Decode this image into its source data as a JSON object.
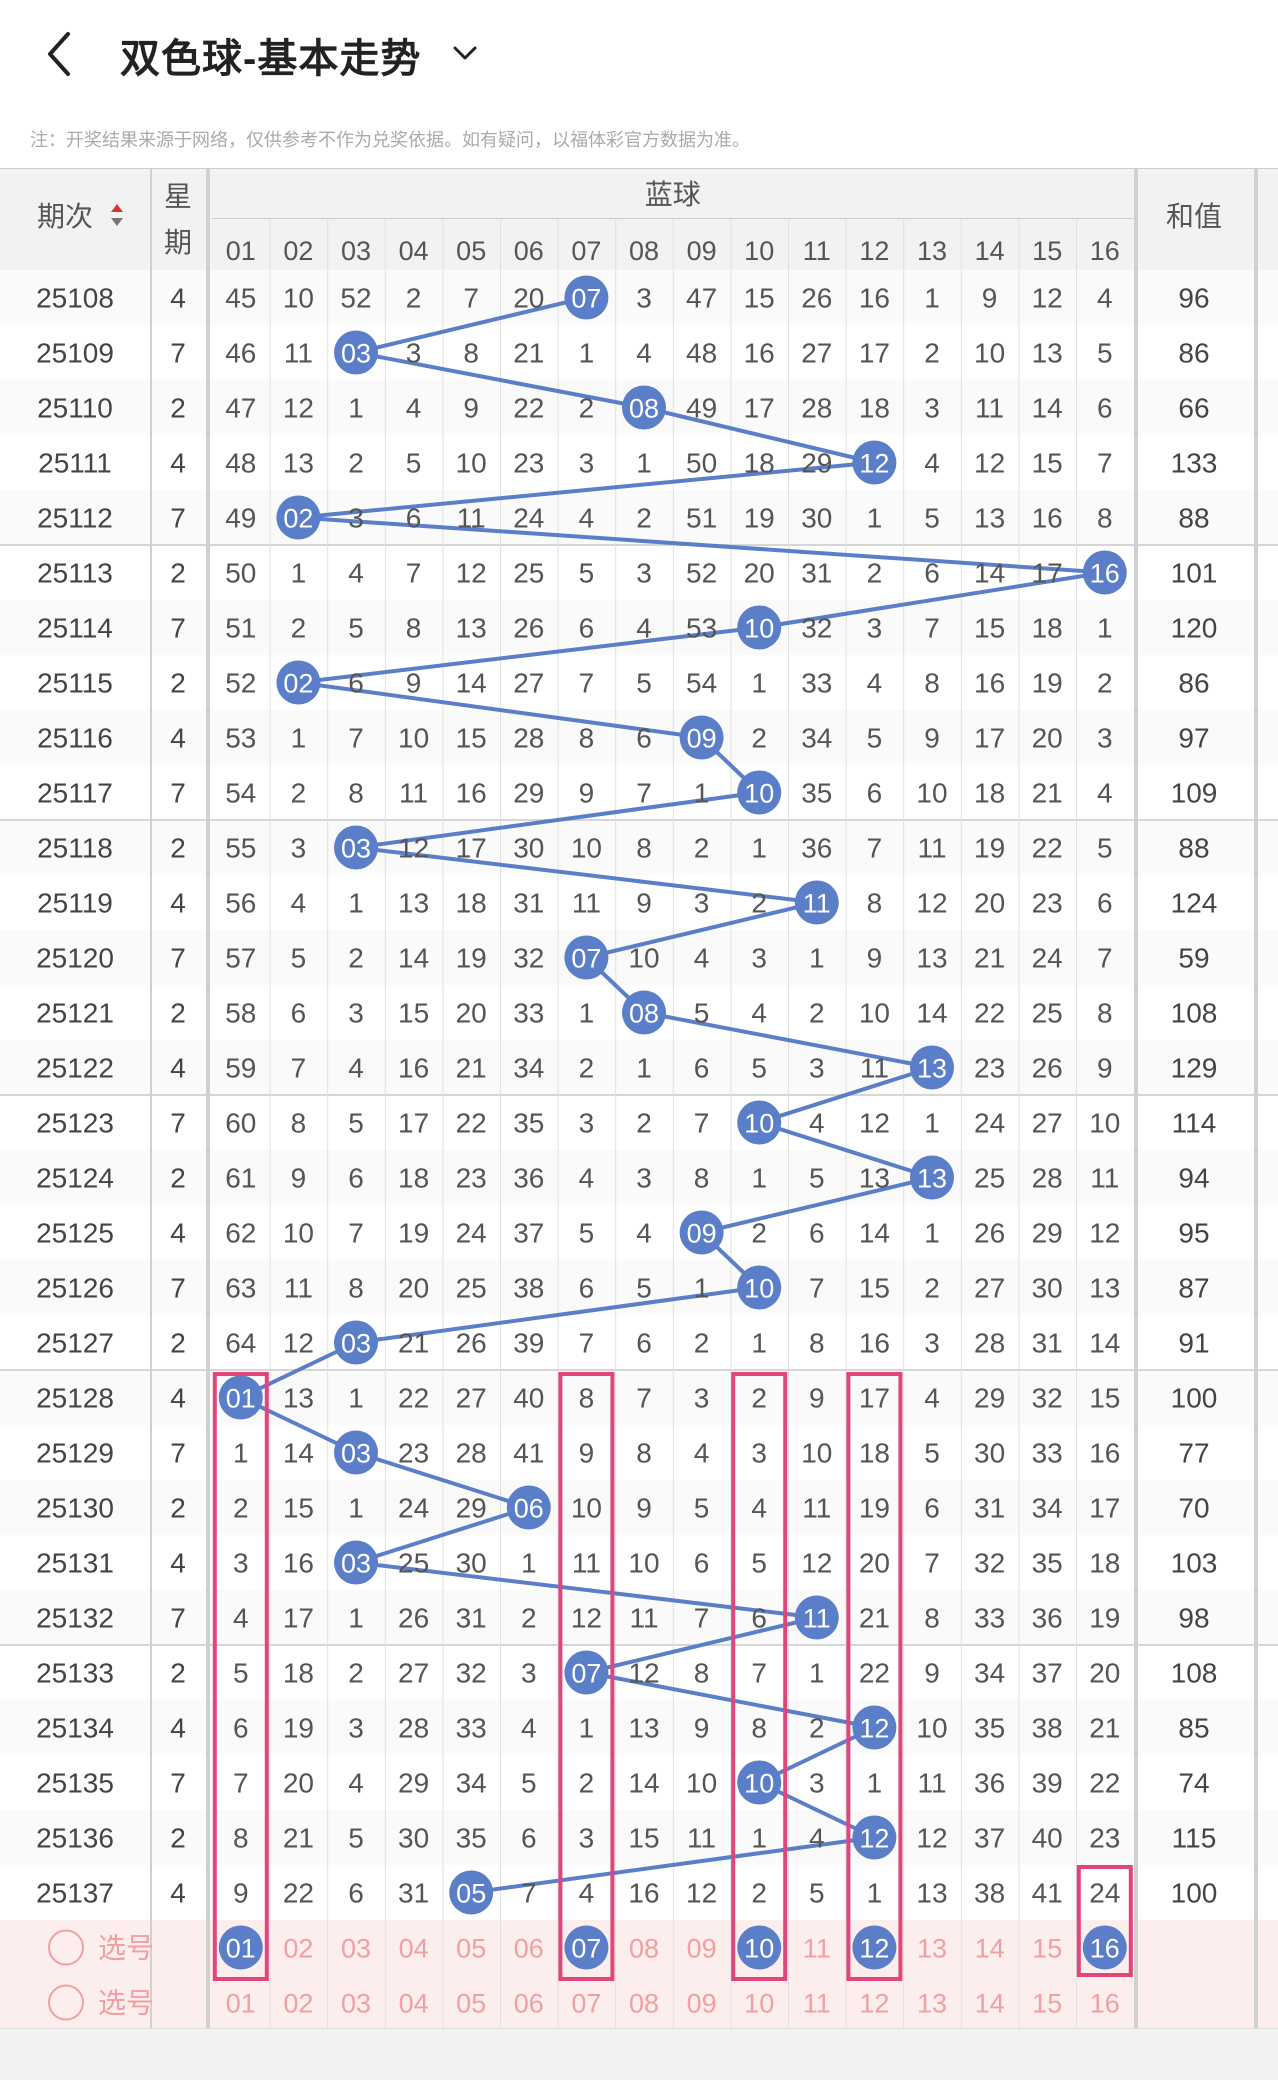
{
  "header": {
    "title": "双色球-基本走势",
    "note": "注：开奖结果来源于网络，仅供参考不作为兑奖依据。如有疑问，以福体彩官方数据为准。"
  },
  "table": {
    "col_period": "期次",
    "col_week_1": "星",
    "col_week_2": "期",
    "col_blue": "蓝球",
    "col_sum": "和值",
    "numbers": [
      "01",
      "02",
      "03",
      "04",
      "05",
      "06",
      "07",
      "08",
      "09",
      "10",
      "11",
      "12",
      "13",
      "14",
      "15",
      "16"
    ],
    "colors": {
      "ball": "#5b7ec8",
      "line": "#5b7ec8",
      "highlight_box": "#e0457b",
      "select_bg": "#fdeeee",
      "select_text": "#f0a0a0",
      "header_bg": "#f2f2f2"
    },
    "rows": [
      {
        "p": "25108",
        "w": "4",
        "b": 7,
        "m": [
          45,
          10,
          52,
          2,
          7,
          20,
          null,
          3,
          47,
          15,
          26,
          16,
          1,
          9,
          12,
          4
        ],
        "s": "96"
      },
      {
        "p": "25109",
        "w": "7",
        "b": 3,
        "m": [
          46,
          11,
          null,
          3,
          8,
          21,
          1,
          4,
          48,
          16,
          27,
          17,
          2,
          10,
          13,
          5
        ],
        "s": "86"
      },
      {
        "p": "25110",
        "w": "2",
        "b": 8,
        "m": [
          47,
          12,
          1,
          4,
          9,
          22,
          2,
          null,
          49,
          17,
          28,
          18,
          3,
          11,
          14,
          6
        ],
        "s": "66"
      },
      {
        "p": "25111",
        "w": "4",
        "b": 12,
        "m": [
          48,
          13,
          2,
          5,
          10,
          23,
          3,
          1,
          50,
          18,
          29,
          null,
          4,
          12,
          15,
          7
        ],
        "s": "133"
      },
      {
        "p": "25112",
        "w": "7",
        "b": 2,
        "m": [
          49,
          null,
          3,
          6,
          11,
          24,
          4,
          2,
          51,
          19,
          30,
          1,
          5,
          13,
          16,
          8
        ],
        "s": "88"
      },
      {
        "p": "25113",
        "w": "2",
        "b": 16,
        "m": [
          50,
          1,
          4,
          7,
          12,
          25,
          5,
          3,
          52,
          20,
          31,
          2,
          6,
          14,
          17,
          null
        ],
        "s": "101"
      },
      {
        "p": "25114",
        "w": "7",
        "b": 10,
        "m": [
          51,
          2,
          5,
          8,
          13,
          26,
          6,
          4,
          53,
          null,
          32,
          3,
          7,
          15,
          18,
          1
        ],
        "s": "120"
      },
      {
        "p": "25115",
        "w": "2",
        "b": 2,
        "m": [
          52,
          null,
          6,
          9,
          14,
          27,
          7,
          5,
          54,
          1,
          33,
          4,
          8,
          16,
          19,
          2
        ],
        "s": "86"
      },
      {
        "p": "25116",
        "w": "4",
        "b": 9,
        "m": [
          53,
          1,
          7,
          10,
          15,
          28,
          8,
          6,
          null,
          2,
          34,
          5,
          9,
          17,
          20,
          3
        ],
        "s": "97"
      },
      {
        "p": "25117",
        "w": "7",
        "b": 10,
        "m": [
          54,
          2,
          8,
          11,
          16,
          29,
          9,
          7,
          1,
          null,
          35,
          6,
          10,
          18,
          21,
          4
        ],
        "s": "109"
      },
      {
        "p": "25118",
        "w": "2",
        "b": 3,
        "m": [
          55,
          3,
          null,
          12,
          17,
          30,
          10,
          8,
          2,
          1,
          36,
          7,
          11,
          19,
          22,
          5
        ],
        "s": "88"
      },
      {
        "p": "25119",
        "w": "4",
        "b": 11,
        "m": [
          56,
          4,
          1,
          13,
          18,
          31,
          11,
          9,
          3,
          2,
          null,
          8,
          12,
          20,
          23,
          6
        ],
        "s": "124"
      },
      {
        "p": "25120",
        "w": "7",
        "b": 7,
        "m": [
          57,
          5,
          2,
          14,
          19,
          32,
          null,
          10,
          4,
          3,
          1,
          9,
          13,
          21,
          24,
          7
        ],
        "s": "59"
      },
      {
        "p": "25121",
        "w": "2",
        "b": 8,
        "m": [
          58,
          6,
          3,
          15,
          20,
          33,
          1,
          null,
          5,
          4,
          2,
          10,
          14,
          22,
          25,
          8
        ],
        "s": "108"
      },
      {
        "p": "25122",
        "w": "4",
        "b": 13,
        "m": [
          59,
          7,
          4,
          16,
          21,
          34,
          2,
          1,
          6,
          5,
          3,
          11,
          null,
          23,
          26,
          9
        ],
        "s": "129"
      },
      {
        "p": "25123",
        "w": "7",
        "b": 10,
        "m": [
          60,
          8,
          5,
          17,
          22,
          35,
          3,
          2,
          7,
          null,
          4,
          12,
          1,
          24,
          27,
          10
        ],
        "s": "114"
      },
      {
        "p": "25124",
        "w": "2",
        "b": 13,
        "m": [
          61,
          9,
          6,
          18,
          23,
          36,
          4,
          3,
          8,
          1,
          5,
          13,
          null,
          25,
          28,
          11
        ],
        "s": "94"
      },
      {
        "p": "25125",
        "w": "4",
        "b": 9,
        "m": [
          62,
          10,
          7,
          19,
          24,
          37,
          5,
          4,
          null,
          2,
          6,
          14,
          1,
          26,
          29,
          12
        ],
        "s": "95"
      },
      {
        "p": "25126",
        "w": "7",
        "b": 10,
        "m": [
          63,
          11,
          8,
          20,
          25,
          38,
          6,
          5,
          1,
          null,
          7,
          15,
          2,
          27,
          30,
          13
        ],
        "s": "87"
      },
      {
        "p": "25127",
        "w": "2",
        "b": 3,
        "m": [
          64,
          12,
          null,
          21,
          26,
          39,
          7,
          6,
          2,
          1,
          8,
          16,
          3,
          28,
          31,
          14
        ],
        "s": "91"
      },
      {
        "p": "25128",
        "w": "4",
        "b": 1,
        "m": [
          null,
          13,
          1,
          22,
          27,
          40,
          8,
          7,
          3,
          2,
          9,
          17,
          4,
          29,
          32,
          15
        ],
        "s": "100"
      },
      {
        "p": "25129",
        "w": "7",
        "b": 3,
        "m": [
          1,
          14,
          null,
          23,
          28,
          41,
          9,
          8,
          4,
          3,
          10,
          18,
          5,
          30,
          33,
          16
        ],
        "s": "77"
      },
      {
        "p": "25130",
        "w": "2",
        "b": 6,
        "m": [
          2,
          15,
          1,
          24,
          29,
          null,
          10,
          9,
          5,
          4,
          11,
          19,
          6,
          31,
          34,
          17
        ],
        "s": "70"
      },
      {
        "p": "25131",
        "w": "4",
        "b": 3,
        "m": [
          3,
          16,
          null,
          25,
          30,
          1,
          11,
          10,
          6,
          5,
          12,
          20,
          7,
          32,
          35,
          18
        ],
        "s": "103"
      },
      {
        "p": "25132",
        "w": "7",
        "b": 11,
        "m": [
          4,
          17,
          1,
          26,
          31,
          2,
          12,
          11,
          7,
          6,
          null,
          21,
          8,
          33,
          36,
          19
        ],
        "s": "98"
      },
      {
        "p": "25133",
        "w": "2",
        "b": 7,
        "m": [
          5,
          18,
          2,
          27,
          32,
          3,
          null,
          12,
          8,
          7,
          1,
          22,
          9,
          34,
          37,
          20
        ],
        "s": "108"
      },
      {
        "p": "25134",
        "w": "4",
        "b": 12,
        "m": [
          6,
          19,
          3,
          28,
          33,
          4,
          1,
          13,
          9,
          8,
          2,
          null,
          10,
          35,
          38,
          21
        ],
        "s": "85"
      },
      {
        "p": "25135",
        "w": "7",
        "b": 10,
        "m": [
          7,
          20,
          4,
          29,
          34,
          5,
          2,
          14,
          10,
          null,
          3,
          1,
          11,
          36,
          39,
          22
        ],
        "s": "74"
      },
      {
        "p": "25136",
        "w": "2",
        "b": 12,
        "m": [
          8,
          21,
          5,
          30,
          35,
          6,
          3,
          15,
          11,
          1,
          4,
          null,
          12,
          37,
          40,
          23
        ],
        "s": "115"
      },
      {
        "p": "25137",
        "w": "4",
        "b": 5,
        "m": [
          9,
          22,
          6,
          31,
          null,
          7,
          4,
          16,
          12,
          2,
          5,
          1,
          13,
          38,
          41,
          24
        ],
        "s": "100"
      }
    ],
    "select_label": "选号",
    "selected": [
      1,
      7,
      10,
      12,
      16
    ],
    "highlight_cols": [
      1,
      7,
      10,
      12
    ]
  }
}
